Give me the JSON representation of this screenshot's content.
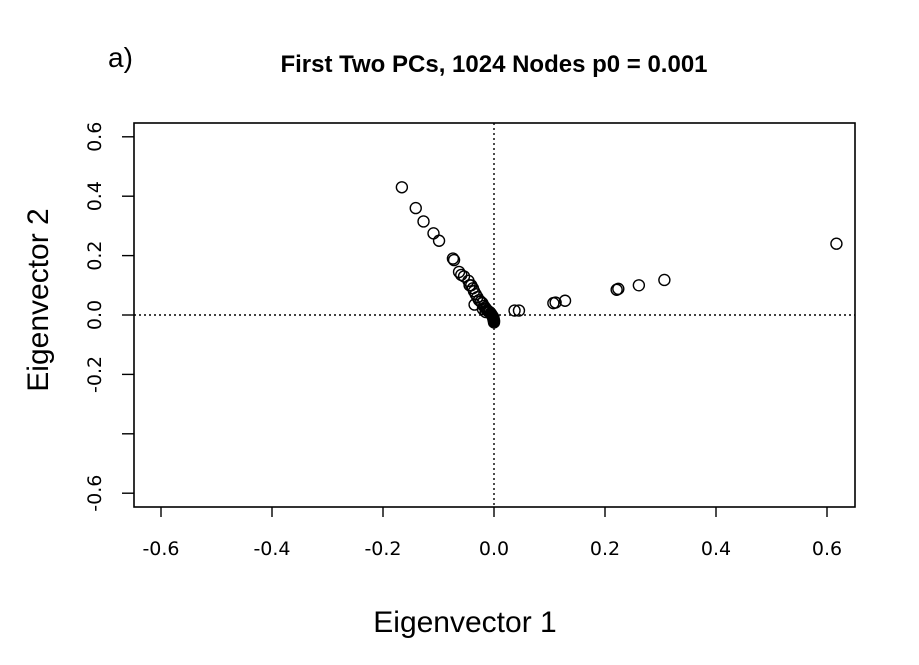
{
  "panel_label": "a)",
  "chart_data": {
    "type": "scatter",
    "title": "First Two PCs, 1024 Nodes p0 = 0.001",
    "xlabel": "Eigenvector 1",
    "ylabel": "Eigenvector 2",
    "xlim": [
      -0.65,
      0.65
    ],
    "ylim": [
      -0.65,
      0.65
    ],
    "x_ticks": [
      -0.6,
      -0.4,
      -0.2,
      0.0,
      0.2,
      0.4,
      0.6
    ],
    "x_tick_labels": [
      "-0.6",
      "-0.4",
      "-0.2",
      "0.0",
      "0.2",
      "0.4",
      "0.6"
    ],
    "y_ticks": [
      -0.6,
      -0.4,
      -0.2,
      0.0,
      0.2,
      0.4,
      0.6
    ],
    "y_tick_labels": [
      "-0.6",
      "",
      "-0.2",
      "0.0",
      "0.2",
      "0.4",
      "0.6"
    ],
    "reference_lines": {
      "x": 0.0,
      "y": 0.0,
      "style": "dotted"
    },
    "marker": "open-circle",
    "grid": false,
    "legend": "none",
    "points": [
      {
        "x": -0.166,
        "y": 0.43
      },
      {
        "x": -0.141,
        "y": 0.36
      },
      {
        "x": -0.127,
        "y": 0.315
      },
      {
        "x": -0.109,
        "y": 0.275
      },
      {
        "x": -0.099,
        "y": 0.25
      },
      {
        "x": -0.074,
        "y": 0.19
      },
      {
        "x": -0.072,
        "y": 0.185
      },
      {
        "x": -0.063,
        "y": 0.145
      },
      {
        "x": -0.059,
        "y": 0.135
      },
      {
        "x": -0.054,
        "y": 0.13
      },
      {
        "x": -0.046,
        "y": 0.115
      },
      {
        "x": -0.044,
        "y": 0.1
      },
      {
        "x": -0.041,
        "y": 0.1
      },
      {
        "x": -0.038,
        "y": 0.09
      },
      {
        "x": -0.036,
        "y": 0.08
      },
      {
        "x": -0.033,
        "y": 0.07
      },
      {
        "x": -0.03,
        "y": 0.06
      },
      {
        "x": -0.027,
        "y": 0.05
      },
      {
        "x": -0.035,
        "y": 0.035
      },
      {
        "x": -0.024,
        "y": 0.045
      },
      {
        "x": -0.021,
        "y": 0.04
      },
      {
        "x": -0.018,
        "y": 0.03
      },
      {
        "x": -0.016,
        "y": 0.025
      },
      {
        "x": -0.014,
        "y": 0.02
      },
      {
        "x": -0.012,
        "y": 0.015
      },
      {
        "x": -0.01,
        "y": 0.012
      },
      {
        "x": -0.008,
        "y": 0.01
      },
      {
        "x": -0.006,
        "y": 0.006
      },
      {
        "x": -0.005,
        "y": 0.003
      },
      {
        "x": -0.004,
        "y": 0.0
      },
      {
        "x": -0.003,
        "y": -0.003
      },
      {
        "x": -0.002,
        "y": -0.006
      },
      {
        "x": -0.001,
        "y": -0.009
      },
      {
        "x": -0.001,
        "y": -0.012
      },
      {
        "x": -0.001,
        "y": -0.015
      },
      {
        "x": 0.0,
        "y": -0.018
      },
      {
        "x": 0.0,
        "y": -0.021
      },
      {
        "x": 0.0,
        "y": -0.025
      },
      {
        "x": -0.02,
        "y": 0.02
      },
      {
        "x": -0.015,
        "y": 0.01
      },
      {
        "x": 0.037,
        "y": 0.015
      },
      {
        "x": 0.045,
        "y": 0.015
      },
      {
        "x": 0.107,
        "y": 0.04
      },
      {
        "x": 0.111,
        "y": 0.042
      },
      {
        "x": 0.128,
        "y": 0.048
      },
      {
        "x": 0.221,
        "y": 0.085
      },
      {
        "x": 0.224,
        "y": 0.088
      },
      {
        "x": 0.261,
        "y": 0.1
      },
      {
        "x": 0.307,
        "y": 0.118
      },
      {
        "x": 0.617,
        "y": 0.24
      }
    ]
  }
}
